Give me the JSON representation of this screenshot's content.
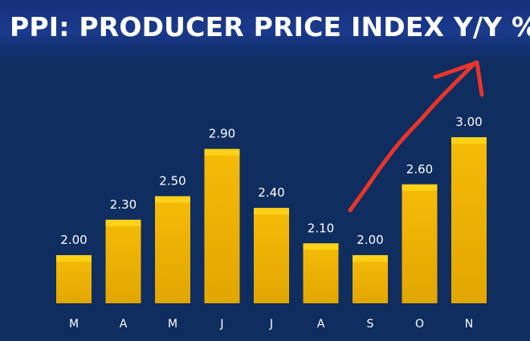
{
  "title": "PPI: PRODUCER PRICE INDEX Y/Y %",
  "colors": {
    "background": "#0f2d5f",
    "bar": "#f2b705",
    "bar_top": "#ffd21a",
    "label": "#ffffff",
    "annotation_arrow": "#e8352b"
  },
  "chart_data": {
    "type": "bar",
    "title": "PPI: PRODUCER PRICE INDEX Y/Y %",
    "categories": [
      "M",
      "A",
      "M",
      "J",
      "J",
      "A",
      "S",
      "O",
      "N"
    ],
    "values": [
      2.0,
      2.3,
      2.5,
      2.9,
      2.4,
      2.1,
      2.0,
      2.6,
      3.0
    ],
    "value_labels": [
      "2.00",
      "2.30",
      "2.50",
      "2.90",
      "2.40",
      "2.10",
      "2.00",
      "2.60",
      "3.00"
    ],
    "xlabel": "",
    "ylabel": "",
    "ylim": [
      1.5,
      3.0
    ],
    "grid": false,
    "annotations": [
      {
        "type": "hand-drawn-arrow",
        "color": "#e8352b",
        "description_target": "upward trend from S to N"
      }
    ]
  }
}
